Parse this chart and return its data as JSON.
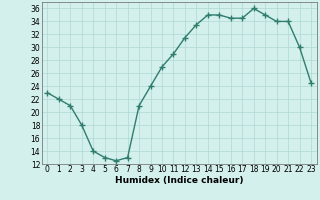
{
  "x": [
    0,
    1,
    2,
    3,
    4,
    5,
    6,
    7,
    8,
    9,
    10,
    11,
    12,
    13,
    14,
    15,
    16,
    17,
    18,
    19,
    20,
    21,
    22,
    23
  ],
  "y": [
    23,
    22,
    21,
    18,
    14,
    13,
    12.5,
    13,
    21,
    24,
    27,
    29,
    31.5,
    33.5,
    35,
    35,
    34.5,
    34.5,
    36,
    35,
    34,
    34,
    30,
    24.5
  ],
  "line_color": "#2e7d6e",
  "marker": "+",
  "marker_size": 4,
  "bg_color": "#d4f0ec",
  "grid_color": "#aed8d4",
  "xlabel": "Humidex (Indice chaleur)",
  "ylim": [
    12,
    37
  ],
  "xlim": [
    -0.5,
    23.5
  ],
  "yticks": [
    12,
    14,
    16,
    18,
    20,
    22,
    24,
    26,
    28,
    30,
    32,
    34,
    36
  ],
  "xticks": [
    0,
    1,
    2,
    3,
    4,
    5,
    6,
    7,
    8,
    9,
    10,
    11,
    12,
    13,
    14,
    15,
    16,
    17,
    18,
    19,
    20,
    21,
    22,
    23
  ],
  "xtick_labels": [
    "0",
    "1",
    "2",
    "3",
    "4",
    "5",
    "6",
    "7",
    "8",
    "9",
    "10",
    "11",
    "12",
    "13",
    "14",
    "15",
    "16",
    "17",
    "18",
    "19",
    "20",
    "21",
    "22",
    "23"
  ],
  "xlabel_fontsize": 6.5,
  "tick_fontsize": 5.5,
  "line_width": 1.0
}
